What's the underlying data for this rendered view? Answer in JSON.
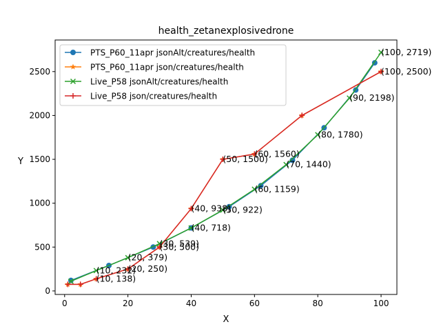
{
  "chart_data": {
    "type": "line",
    "title": "health_zetanexplosivedrone",
    "xlabel": "X",
    "ylabel": "Y",
    "xlim": [
      -3,
      105
    ],
    "ylim": [
      -40,
      2860
    ],
    "xticks": [
      0,
      20,
      40,
      60,
      80,
      100
    ],
    "yticks": [
      0,
      500,
      1000,
      1500,
      2000,
      2500
    ],
    "grid": false,
    "legend_position": "upper-left",
    "series": [
      {
        "name": "PTS_P60_11apr jsonAlt/creatures/health",
        "color": "#1f77b4",
        "marker": "circle",
        "x": [
          2,
          14,
          28,
          40,
          52,
          62,
          72,
          82,
          92,
          98
        ],
        "y": [
          120,
          290,
          500,
          718,
          960,
          1200,
          1490,
          1860,
          2290,
          2600
        ]
      },
      {
        "name": "PTS_P60_11apr json/creatures/health",
        "color": "#ff7f0e",
        "marker": "star",
        "x": [
          1,
          5,
          10,
          20,
          30,
          40,
          50,
          60,
          75,
          100
        ],
        "y": [
          75,
          75,
          138,
          250,
          500,
          938,
          1500,
          1560,
          2000,
          2500
        ]
      },
      {
        "name": "Live_P58 jsonAlt/creatures/health",
        "color": "#2ca02c",
        "marker": "x",
        "x": [
          2,
          10,
          20,
          30,
          40,
          50,
          60,
          70,
          80,
          90,
          100
        ],
        "y": [
          110,
          232,
          379,
          539,
          718,
          922,
          1159,
          1440,
          1780,
          2198,
          2719
        ]
      },
      {
        "name": "Live_P58 json/creatures/health",
        "color": "#d62728",
        "marker": "plus",
        "x": [
          1,
          5,
          10,
          20,
          30,
          40,
          50,
          60,
          75,
          100
        ],
        "y": [
          75,
          75,
          138,
          250,
          500,
          938,
          1500,
          1560,
          2000,
          2500
        ]
      }
    ],
    "annotations": [
      {
        "x": 10,
        "y": 138,
        "text": "(10, 138)"
      },
      {
        "x": 10,
        "y": 232,
        "text": "(10, 232)"
      },
      {
        "x": 20,
        "y": 250,
        "text": "(20, 250)"
      },
      {
        "x": 20,
        "y": 379,
        "text": "(20, 379)"
      },
      {
        "x": 30,
        "y": 500,
        "text": "(30, 500)"
      },
      {
        "x": 30,
        "y": 539,
        "text": "(30, 539)"
      },
      {
        "x": 40,
        "y": 718,
        "text": "(40, 718)"
      },
      {
        "x": 40,
        "y": 938,
        "text": "(40, 938)"
      },
      {
        "x": 50,
        "y": 922,
        "text": "(50, 922)"
      },
      {
        "x": 50,
        "y": 1500,
        "text": "(50, 1500)"
      },
      {
        "x": 60,
        "y": 1159,
        "text": "(60, 1159)"
      },
      {
        "x": 60,
        "y": 1560,
        "text": "(60, 1560)"
      },
      {
        "x": 70,
        "y": 1440,
        "text": "(70, 1440)"
      },
      {
        "x": 80,
        "y": 1780,
        "text": "(80, 1780)"
      },
      {
        "x": 90,
        "y": 2198,
        "text": "(90, 2198)"
      },
      {
        "x": 100,
        "y": 2500,
        "text": "(100, 2500)"
      },
      {
        "x": 100,
        "y": 2719,
        "text": "(100, 2719)"
      }
    ]
  }
}
